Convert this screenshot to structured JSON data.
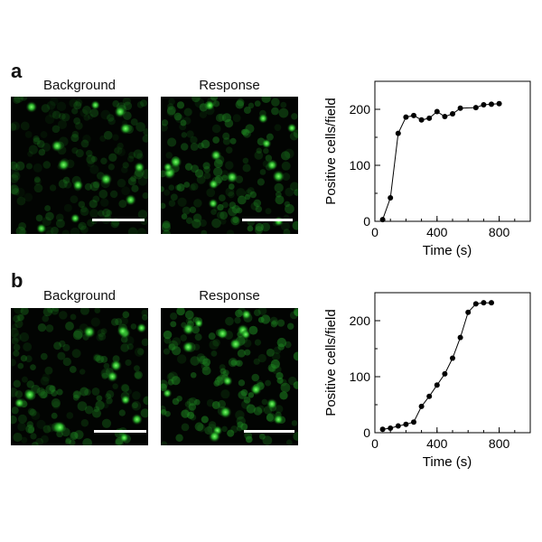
{
  "figure": {
    "panels": [
      {
        "letter": "a",
        "images": [
          {
            "label": "Background",
            "scale_bar": true
          },
          {
            "label": "Response",
            "scale_bar": true
          }
        ]
      },
      {
        "letter": "b",
        "images": [
          {
            "label": "Background",
            "scale_bar": true
          },
          {
            "label": "Response",
            "scale_bar": true
          }
        ]
      }
    ]
  },
  "colors": {
    "cell_green": "#2fbf2f",
    "image_background": "#020402",
    "plot_line": "#000000"
  },
  "chart_data": [
    {
      "type": "line",
      "title": "",
      "xlabel": "Time (s)",
      "ylabel": "Positive cells/field",
      "xlim": [
        0,
        1000
      ],
      "ylim": [
        0,
        250
      ],
      "xticks": [
        0,
        400,
        800
      ],
      "yticks": [
        0,
        100,
        200
      ],
      "minor_ticks": true,
      "grid": false,
      "markers": "filled-circle",
      "series": [
        {
          "x": [
            50,
            100,
            150,
            200,
            250,
            300,
            350,
            400,
            450,
            500,
            550,
            650,
            700,
            750,
            800
          ],
          "y": [
            3,
            42,
            157,
            186,
            189,
            181,
            184,
            196,
            187,
            192,
            202,
            203,
            208,
            209,
            210
          ]
        }
      ]
    },
    {
      "type": "line",
      "title": "",
      "xlabel": "Time (s)",
      "ylabel": "Positive cells/field",
      "xlim": [
        0,
        1000
      ],
      "ylim": [
        0,
        250
      ],
      "xticks": [
        0,
        400,
        800
      ],
      "yticks": [
        0,
        100,
        200
      ],
      "minor_ticks": true,
      "grid": false,
      "markers": "filled-circle",
      "series": [
        {
          "x": [
            50,
            100,
            150,
            200,
            250,
            300,
            350,
            400,
            450,
            500,
            550,
            600,
            650,
            700,
            750
          ],
          "y": [
            6,
            8,
            12,
            15,
            19,
            47,
            65,
            85,
            105,
            133,
            170,
            215,
            230,
            232,
            232
          ]
        }
      ]
    }
  ]
}
